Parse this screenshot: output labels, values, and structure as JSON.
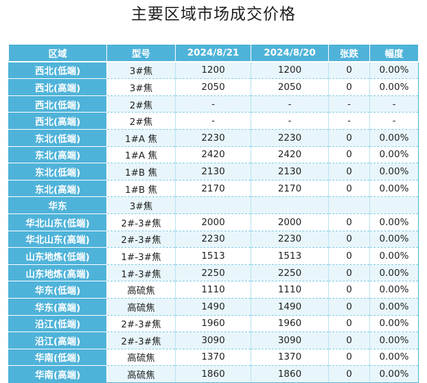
{
  "title": "主要区域市场成交价格",
  "headers": [
    "区域",
    "型号",
    "2024/8/21",
    "2024/8/20",
    "张跌",
    "幅度"
  ],
  "rows": [
    [
      "西北(低端)",
      "3#焦",
      "1200",
      "1200",
      "0",
      "0.00%"
    ],
    [
      "西北(高端)",
      "3#焦",
      "2050",
      "2050",
      "0",
      "0.00%"
    ],
    [
      "西北(低端)",
      "2#焦",
      "-",
      "-",
      "-",
      "-"
    ],
    [
      "西北(高端)",
      "2#焦",
      "-",
      "-",
      "-",
      "-"
    ],
    [
      "东北(低端)",
      "1#A 焦",
      "2230",
      "2230",
      "0",
      "0.00%"
    ],
    [
      "东北(高端)",
      "1#A 焦",
      "2420",
      "2420",
      "0",
      "0.00%"
    ],
    [
      "东北(低端)",
      "1#B 焦",
      "2130",
      "2130",
      "0",
      "0.00%"
    ],
    [
      "东北(高端)",
      "1#B 焦",
      "2170",
      "2170",
      "0",
      "0.00%"
    ],
    [
      "华东",
      "3#焦",
      "",
      "",
      "",
      ""
    ],
    [
      "华北山东(低端)",
      "2#-3#焦",
      "2000",
      "2000",
      "0",
      "0.00%"
    ],
    [
      "华北山东(高端)",
      "2#-3#焦",
      "2230",
      "2230",
      "0",
      "0.00%"
    ],
    [
      "山东地炼(低端)",
      "1#-3#焦",
      "1513",
      "1513",
      "0",
      "0.00%"
    ],
    [
      "山东地炼(高端)",
      "1#-3#焦",
      "2250",
      "2250",
      "0",
      "0.00%"
    ],
    [
      "华东(低端)",
      "高硫焦",
      "1110",
      "1110",
      "0",
      "0.00%"
    ],
    [
      "华东(高端)",
      "高硫焦",
      "1490",
      "1490",
      "0",
      "0.00%"
    ],
    [
      "沿江(低端)",
      "2#-3#焦",
      "1960",
      "1960",
      "0",
      "0.00%"
    ],
    [
      "沿江(高端)",
      "2#-3#焦",
      "3090",
      "3090",
      "0",
      "0.00%"
    ],
    [
      "华南(低端)",
      "高硫焦",
      "1370",
      "1370",
      "0",
      "0.00%"
    ],
    [
      "华南(高端)",
      "高硫焦",
      "1860",
      "1860",
      "0",
      "0.00%"
    ]
  ]
}
